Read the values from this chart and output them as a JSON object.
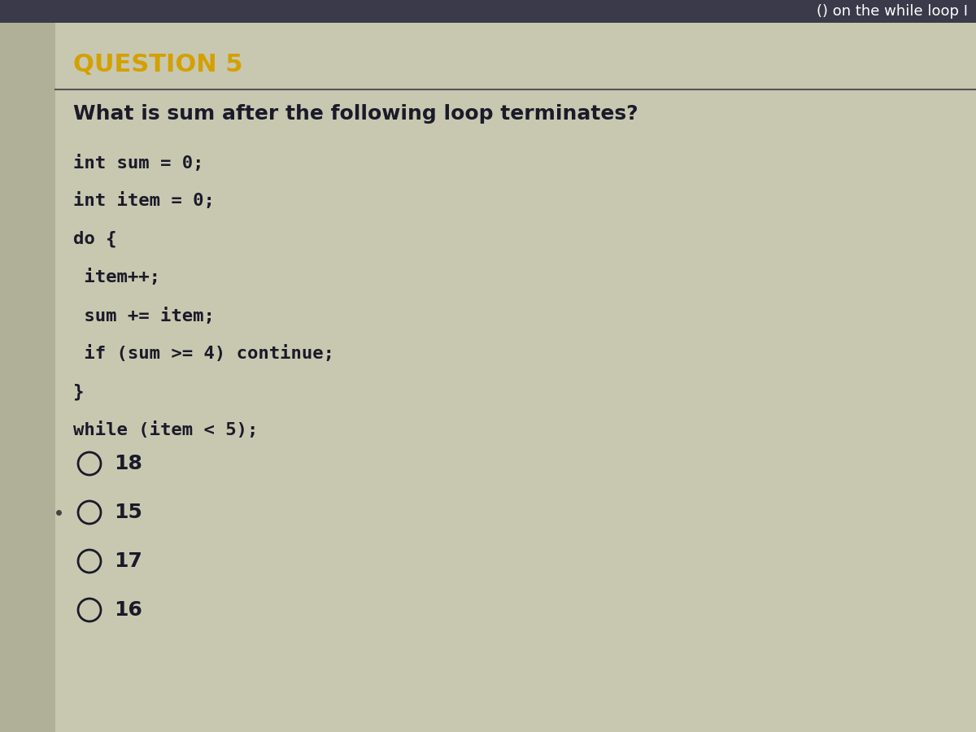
{
  "header_text": "() on the while loop I",
  "question_label": "QUESTION 5",
  "question_text": "What is sum after the following loop terminates?",
  "code_lines": [
    "int sum = 0;",
    "int item = 0;",
    "do {",
    " item++;",
    " sum += item;",
    " if (sum >= 4) continue;",
    "}",
    "while (item < 5);"
  ],
  "options": [
    {
      "circle": true,
      "label": "18"
    },
    {
      "circle": true,
      "label": "15"
    },
    {
      "circle": true,
      "label": "17"
    },
    {
      "circle": true,
      "label": "16"
    }
  ],
  "bg_color": "#c8c8b0",
  "header_bg": "#3a3a4a",
  "question_label_color": "#d4a000",
  "text_color": "#1a1a2a",
  "header_text_color": "#ffffff",
  "divider_color": "#555555",
  "left_panel_color": "#b0b098",
  "font_size_question_label": 22,
  "font_size_question": 18,
  "font_size_code": 16,
  "font_size_options": 18
}
